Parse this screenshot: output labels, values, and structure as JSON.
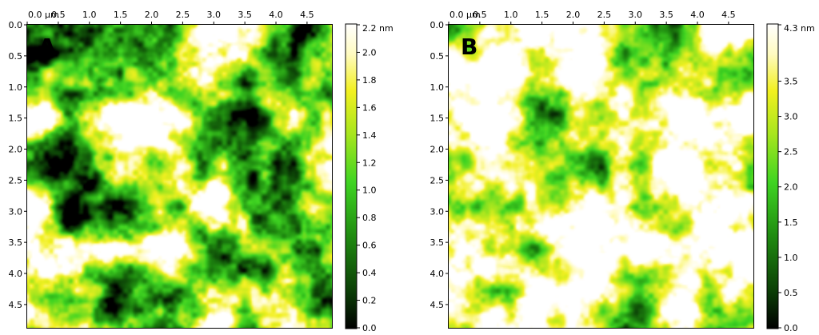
{
  "colormap": [
    "#000000",
    "#0b3d06",
    "#1f8a10",
    "#3fd422",
    "#a8e61e",
    "#f2f020",
    "#fffbc0",
    "#ffffff"
  ],
  "panels": [
    {
      "label": "A",
      "x_ticks": [
        "0.0 μm",
        "0.5",
        "1.0",
        "1.5",
        "2.0",
        "2.5",
        "3.0",
        "3.5",
        "4.0",
        "4.5"
      ],
      "y_ticks": [
        "0.0",
        "0.5",
        "1.0",
        "1.5",
        "2.0",
        "2.5",
        "3.0",
        "3.5",
        "4.0",
        "4.5"
      ],
      "colorbar_ticks": [
        "2.2 nm",
        "2.0",
        "1.8",
        "1.6",
        "1.4",
        "1.2",
        "1.0",
        "0.8",
        "0.6",
        "0.4",
        "0.2",
        "0.0"
      ],
      "colorbar_range": [
        0.0,
        2.2
      ]
    },
    {
      "label": "B",
      "x_ticks": [
        "0.0 μm",
        "0.5",
        "1.0",
        "1.5",
        "2.0",
        "2.5",
        "3.0",
        "3.5",
        "4.0",
        "4.5"
      ],
      "y_ticks": [
        "0.0",
        "0.5",
        "1.0",
        "1.5",
        "2.0",
        "2.5",
        "3.0",
        "3.5",
        "4.0",
        "4.5"
      ],
      "colorbar_ticks": [
        "4.3 nm",
        "3.5",
        "3.0",
        "2.5",
        "2.0",
        "1.5",
        "1.0",
        "0.5",
        "0.0"
      ],
      "colorbar_range": [
        0.0,
        4.3
      ]
    }
  ]
}
